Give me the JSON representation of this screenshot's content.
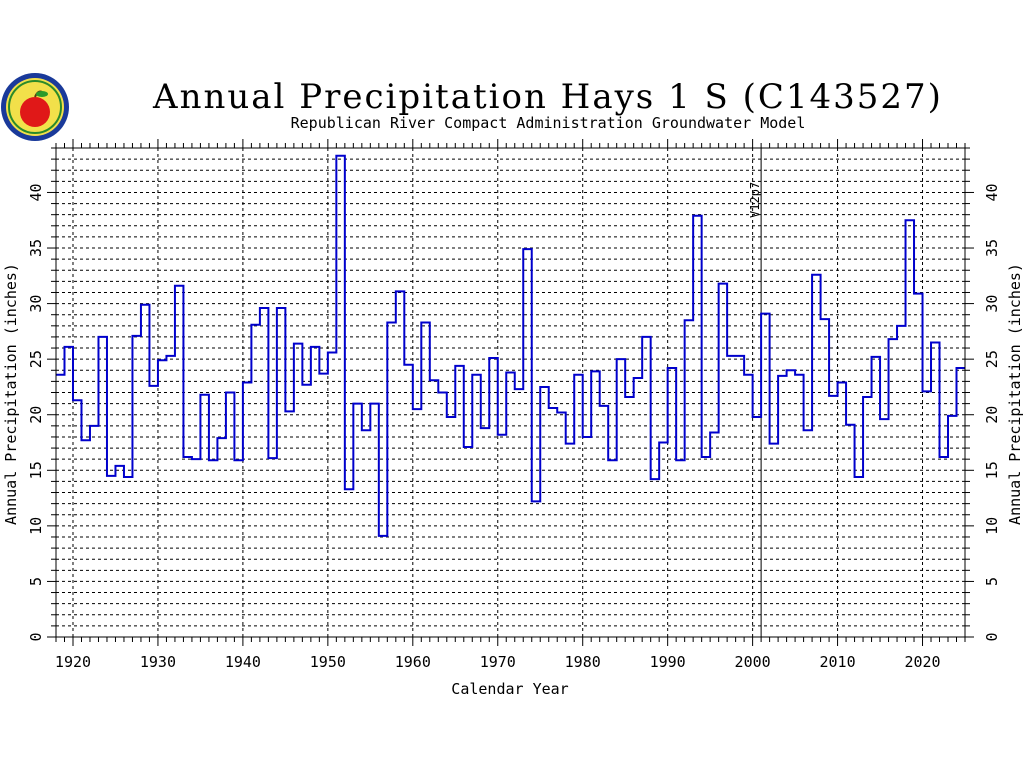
{
  "chart_data": {
    "type": "line",
    "style": "step",
    "title": "Annual Precipitation Hays 1 S (C143527)",
    "subtitle": "Republican River Compact Administration Groundwater Model",
    "xlabel": "Calendar Year",
    "ylabel": "Annual Precipitation (inches)",
    "xlim": [
      1918,
      2025
    ],
    "ylim": [
      0,
      44
    ],
    "xticks": [
      1920,
      1930,
      1940,
      1950,
      1960,
      1970,
      1980,
      1990,
      2000,
      2010,
      2020
    ],
    "yticks": [
      0,
      5,
      10,
      15,
      20,
      25,
      30,
      35,
      40
    ],
    "grid": true,
    "line_color": "#0000cc",
    "annotations": [
      {
        "label": "V12p7",
        "x": 2001
      }
    ],
    "x": [
      1918,
      1919,
      1920,
      1921,
      1922,
      1923,
      1924,
      1925,
      1926,
      1927,
      1928,
      1929,
      1930,
      1931,
      1932,
      1933,
      1934,
      1935,
      1936,
      1937,
      1938,
      1939,
      1940,
      1941,
      1942,
      1943,
      1944,
      1945,
      1946,
      1947,
      1948,
      1949,
      1950,
      1951,
      1952,
      1953,
      1954,
      1955,
      1956,
      1957,
      1958,
      1959,
      1960,
      1961,
      1962,
      1963,
      1964,
      1965,
      1966,
      1967,
      1968,
      1969,
      1970,
      1971,
      1972,
      1973,
      1974,
      1975,
      1976,
      1977,
      1978,
      1979,
      1980,
      1981,
      1982,
      1983,
      1984,
      1985,
      1986,
      1987,
      1988,
      1989,
      1990,
      1991,
      1992,
      1993,
      1994,
      1995,
      1996,
      1997,
      1998,
      1999,
      2000,
      2001,
      2002,
      2003,
      2004,
      2005,
      2006,
      2007,
      2008,
      2009,
      2010,
      2011,
      2012,
      2013,
      2014,
      2015,
      2016,
      2017,
      2018,
      2019,
      2020,
      2021,
      2022,
      2023,
      2024
    ],
    "values": [
      23.6,
      26.1,
      21.3,
      17.7,
      19.0,
      27.0,
      14.5,
      15.4,
      14.4,
      27.1,
      29.9,
      22.6,
      24.9,
      25.3,
      31.6,
      16.2,
      16.0,
      21.8,
      15.9,
      17.9,
      22.0,
      15.9,
      22.9,
      28.1,
      29.6,
      16.1,
      29.6,
      20.3,
      26.4,
      22.7,
      26.1,
      23.7,
      25.6,
      43.3,
      13.3,
      21.0,
      18.6,
      21.0,
      9.1,
      28.3,
      31.1,
      24.5,
      20.5,
      28.3,
      23.1,
      22.0,
      19.8,
      24.4,
      17.1,
      23.6,
      18.8,
      25.1,
      18.2,
      23.8,
      22.3,
      34.9,
      12.2,
      22.5,
      20.6,
      20.2,
      17.4,
      23.6,
      18.0,
      23.9,
      20.8,
      15.9,
      25.0,
      21.6,
      23.3,
      27.0,
      14.2,
      17.5,
      24.2,
      15.9,
      28.5,
      37.9,
      16.2,
      18.4,
      31.8,
      25.3,
      25.3,
      23.6,
      19.8,
      29.1,
      17.4,
      23.5,
      24.0,
      23.6,
      18.6,
      32.6,
      28.6,
      21.7,
      22.9,
      19.1,
      14.4,
      21.6,
      25.2,
      19.6,
      26.8,
      28.0,
      37.5,
      30.9,
      22.1,
      26.5,
      16.2,
      19.9,
      24.2
    ]
  },
  "logo": {
    "name": "rrca-logo"
  }
}
